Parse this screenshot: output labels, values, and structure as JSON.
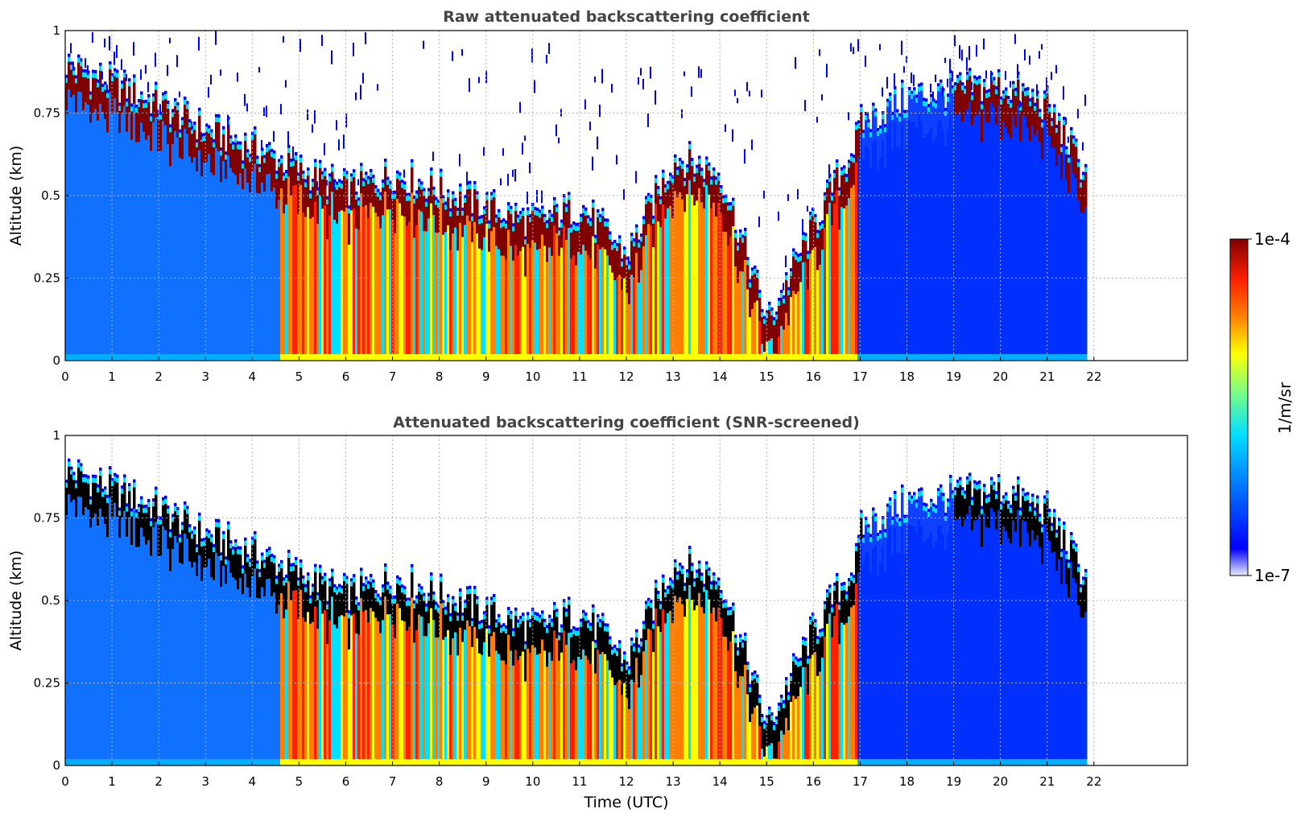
{
  "chart_data": [
    {
      "type": "heatmap",
      "title": "Raw attenuated backscattering coefficient",
      "xlabel": "",
      "ylabel": "Altitude (km)",
      "xlim": [
        0,
        24
      ],
      "ylim": [
        0,
        1
      ],
      "xticks": [
        0,
        1,
        2,
        3,
        4,
        5,
        6,
        7,
        8,
        9,
        10,
        11,
        12,
        13,
        14,
        15,
        16,
        17,
        18,
        19,
        20,
        21,
        22
      ],
      "yticks": [
        0,
        0.25,
        0.5,
        0.75,
        1
      ],
      "ytick_labels": [
        "0",
        "0.25",
        "0.5",
        "0.75",
        "1"
      ],
      "grid": true,
      "data_end_hour": 21.8,
      "screened": false,
      "layer_top_km": [
        [
          0,
          0.88
        ],
        [
          1,
          0.82
        ],
        [
          2,
          0.76
        ],
        [
          3,
          0.68
        ],
        [
          4,
          0.63
        ],
        [
          5,
          0.56
        ],
        [
          6,
          0.5
        ],
        [
          7,
          0.55
        ],
        [
          8,
          0.5
        ],
        [
          9,
          0.45
        ],
        [
          10,
          0.4
        ],
        [
          11,
          0.45
        ],
        [
          12,
          0.3
        ],
        [
          13,
          0.6
        ],
        [
          14,
          0.55
        ],
        [
          15,
          0.1
        ],
        [
          16,
          0.4
        ],
        [
          16.9,
          0.65
        ],
        [
          17,
          0.7
        ],
        [
          18,
          0.78
        ],
        [
          19,
          0.8
        ],
        [
          20,
          0.82
        ],
        [
          21,
          0.75
        ],
        [
          21.8,
          0.55
        ]
      ]
    },
    {
      "type": "heatmap",
      "title": "Attenuated backscattering coefficient (SNR-screened)",
      "xlabel": "Time (UTC)",
      "ylabel": "Altitude (km)",
      "xlim": [
        0,
        24
      ],
      "ylim": [
        0,
        1
      ],
      "xticks": [
        0,
        1,
        2,
        3,
        4,
        5,
        6,
        7,
        8,
        9,
        10,
        11,
        12,
        13,
        14,
        15,
        16,
        17,
        18,
        19,
        20,
        21,
        22
      ],
      "yticks": [
        0,
        0.25,
        0.5,
        0.75,
        1
      ],
      "ytick_labels": [
        "0",
        "0.25",
        "0.5",
        "0.75",
        "1"
      ],
      "grid": true,
      "data_end_hour": 21.8,
      "screened": true,
      "layer_top_km": [
        [
          0,
          0.88
        ],
        [
          1,
          0.82
        ],
        [
          2,
          0.76
        ],
        [
          3,
          0.68
        ],
        [
          4,
          0.63
        ],
        [
          5,
          0.56
        ],
        [
          6,
          0.5
        ],
        [
          7,
          0.55
        ],
        [
          8,
          0.5
        ],
        [
          9,
          0.45
        ],
        [
          10,
          0.4
        ],
        [
          11,
          0.45
        ],
        [
          12,
          0.3
        ],
        [
          13,
          0.6
        ],
        [
          14,
          0.55
        ],
        [
          15,
          0.1
        ],
        [
          16,
          0.4
        ],
        [
          16.9,
          0.6
        ],
        [
          17,
          0.7
        ],
        [
          18,
          0.78
        ],
        [
          19,
          0.8
        ],
        [
          20,
          0.82
        ],
        [
          21,
          0.75
        ],
        [
          21.8,
          0.55
        ]
      ]
    }
  ],
  "colorbar": {
    "label": "1/m/sr",
    "max_label": "1e-4",
    "min_label": "1e-7",
    "scale": "log",
    "range": [
      1e-07,
      0.0001
    ],
    "colormap": [
      "#ececff",
      "#0000ff",
      "#0080ff",
      "#00e0ff",
      "#80ff80",
      "#ffff00",
      "#ff8000",
      "#ff2000",
      "#800000"
    ]
  },
  "colors": {
    "clear_air": "#ffffff",
    "background": "#1060ff",
    "saturated_screened": "#000000"
  }
}
